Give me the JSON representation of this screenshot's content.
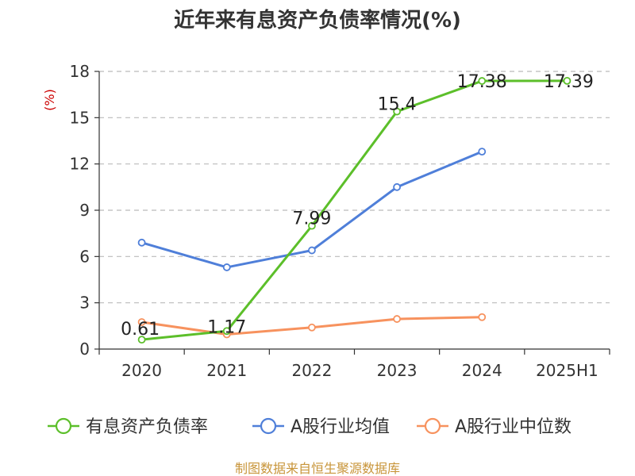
{
  "chart_data": {
    "type": "line",
    "title": "近年来有息资产负债率情况(%)",
    "ylabel": "(%)",
    "categories": [
      "2020",
      "2021",
      "2022",
      "2023",
      "2024",
      "2025H1"
    ],
    "ylim": [
      0,
      18
    ],
    "yticks": [
      "0",
      "3",
      "6",
      "9",
      "12",
      "15",
      "18"
    ],
    "grid": true,
    "legend_position": "bottom",
    "series": [
      {
        "name": "有息资产负债率",
        "color": "#5cbf2a",
        "values": [
          0.61,
          1.17,
          7.99,
          15.4,
          17.38,
          17.39
        ],
        "labels": [
          "0.61",
          "1.17",
          "7.99",
          "15.4",
          "17.38",
          "17.39"
        ]
      },
      {
        "name": "A股行业均值",
        "color": "#4f7fd9",
        "values": [
          6.9,
          5.3,
          6.4,
          10.5,
          12.8,
          null
        ]
      },
      {
        "name": "A股行业中位数",
        "color": "#f7925e",
        "values": [
          1.75,
          0.95,
          1.4,
          1.95,
          2.07,
          null
        ]
      }
    ]
  },
  "source": "制图数据来自恒生聚源数据库"
}
